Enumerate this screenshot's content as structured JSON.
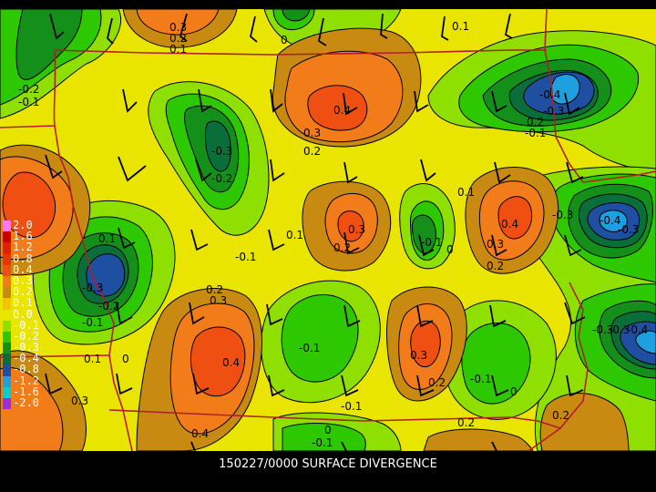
{
  "title": "150227/0000 SURFACE DIVERGENCE",
  "legend": [
    {
      "label": "2.0",
      "color": "#ff77ff"
    },
    {
      "label": "1.6",
      "color": "#cc0000"
    },
    {
      "label": "1.2",
      "color": "#e02000"
    },
    {
      "label": "0.8",
      "color": "#ee3300"
    },
    {
      "label": "0.4",
      "color": "#ef4f10"
    },
    {
      "label": "0.3",
      "color": "#f27c1a"
    },
    {
      "label": "0.2",
      "color": "#c88a10"
    },
    {
      "label": "0.1",
      "color": "#f5c400"
    },
    {
      "label": "0.0",
      "color": "#e9e400"
    },
    {
      "label": "-0.1",
      "color": "#8fe000"
    },
    {
      "label": "-0.2",
      "color": "#2ec800"
    },
    {
      "label": "-0.3",
      "color": "#138f1a"
    },
    {
      "label": "-0.4",
      "color": "#0a6e3a"
    },
    {
      "label": "-0.8",
      "color": "#1e4fa0"
    },
    {
      "label": "-1.2",
      "color": "#1ea0e0"
    },
    {
      "label": "-1.6",
      "color": "#00d0d0"
    },
    {
      "label": "-2.0",
      "color": "#9a2ee0"
    }
  ],
  "contour_labels": [
    "0.3",
    "0.2",
    "0.1",
    "0",
    "0.1",
    "-0.2",
    "-0.1",
    "0.4",
    "0.3",
    "0.2",
    "-0.3",
    "-0.2",
    "-0.4",
    "-0.3",
    "0.2",
    "-0.1",
    "0.1",
    "0.3",
    "0.2",
    "-0.1",
    "0.4",
    "0.3",
    "0",
    "-0.1",
    "0.1",
    "0.2",
    "-0.4",
    "-0.3",
    "-0.3",
    "-0.3",
    "-0.2",
    "-0.1",
    "0.2",
    "0.3",
    "0.4",
    "-0.1",
    "0.3",
    "0.2",
    "-0.1",
    "0",
    "0.1",
    "0.3",
    "0",
    "-0.1",
    "0.4",
    "0",
    "-0.1",
    "0.2",
    "0.2",
    "-0.3",
    "-0.3",
    "-0.4",
    "0.1"
  ]
}
